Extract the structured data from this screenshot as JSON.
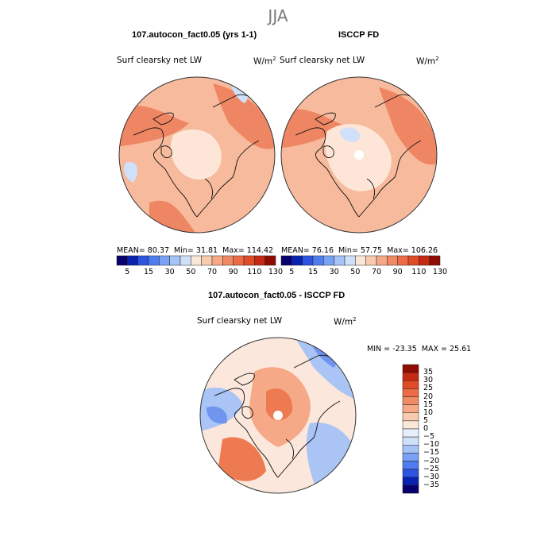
{
  "season": "JJA",
  "panels": [
    {
      "title": "107.autocon_fact0.05 (yrs 1-1)",
      "variable": "Surf clearsky net LW",
      "units_base": "W/m",
      "units_exp": "2",
      "mean_label": "MEAN=",
      "mean": "80.37",
      "min_label": "Min=",
      "min": "31.81",
      "max_label": "Max=",
      "max": "114.42"
    },
    {
      "title": "ISCCP FD",
      "variable": "Surf clearsky net LW",
      "units_base": "W/m",
      "units_exp": "2",
      "mean_label": "MEAN=",
      "mean": "76.16",
      "min_label": "Min=",
      "min": "57.75",
      "max_label": "Max=",
      "max": "106.26"
    }
  ],
  "diff_panel": {
    "title": "107.autocon_fact0.05 - ISCCP FD",
    "variable": "Surf clearsky net LW",
    "units_base": "W/m",
    "units_exp": "2",
    "min_label": "MIN =",
    "min": "-23.35",
    "max_label": "MAX =",
    "max": "25.61"
  },
  "colorbar_abs": {
    "colors": [
      "#08006e",
      "#0a22b0",
      "#2c54e0",
      "#4f7df0",
      "#7aa2f4",
      "#a5c3f6",
      "#cfe0f9",
      "#f9e8d8",
      "#f8cbb0",
      "#f5a986",
      "#f08a64",
      "#ec6b45",
      "#e04b28",
      "#c52a12",
      "#8f0c04"
    ],
    "tick_labels": [
      "5",
      "15",
      "30",
      "50",
      "70",
      "90",
      "110",
      "130"
    ]
  },
  "colorbar_diff": {
    "colors": [
      "#8f0c04",
      "#c52a12",
      "#e04b28",
      "#ec6b45",
      "#f08a64",
      "#f5a986",
      "#f8cbb0",
      "#f9e8d8",
      "#e7eef9",
      "#cfe0f9",
      "#a5c3f6",
      "#7aa2f4",
      "#4f7df0",
      "#2c54e0",
      "#0a22b0",
      "#08006e"
    ],
    "tick_labels": [
      "35",
      "30",
      "25",
      "20",
      "15",
      "10",
      "5",
      "0",
      "−5",
      "−10",
      "−15",
      "−20",
      "−25",
      "−30",
      "−35"
    ]
  },
  "map_colors": {
    "land_abs": "#f7ba9c",
    "hot_abs": "#ef8663",
    "cool_abs": "#fde6d8",
    "blue_abs": "#cfe0f9",
    "diff_pos": "#f5a986",
    "diff_pos_strong": "#ee7a52",
    "diff_neg": "#a9c4f5",
    "diff_neg_strong": "#6f95ef",
    "diff_neutral": "#fbe7db"
  }
}
